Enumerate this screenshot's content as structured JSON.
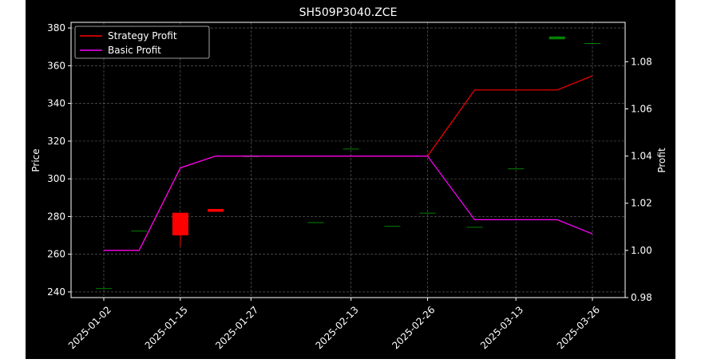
{
  "chart_data": {
    "type": "candlestick",
    "title": "SH509P3040.ZCE",
    "ylabel_left": "Price",
    "ylabel_right": "Profit",
    "x_ticks": [
      "2025-01-02",
      "2025-01-15",
      "2025-01-27",
      "2025-02-13",
      "2025-02-26",
      "2025-03-13",
      "2025-03-26"
    ],
    "y_left": {
      "ylim": [
        237,
        383
      ],
      "ticks": [
        240,
        260,
        280,
        300,
        320,
        340,
        360,
        380
      ]
    },
    "y_right": {
      "ylim": [
        0.98,
        1.0967
      ],
      "ticks": [
        0.98,
        1.0,
        1.02,
        1.04,
        1.06,
        1.08
      ]
    },
    "grid": true,
    "legend_position": "top-left",
    "colors": {
      "up": "#008000",
      "down": "#ff0000",
      "strategy": "#ff0000",
      "basic": "#ff00ff",
      "background": "#000000",
      "foreground": "#ffffff"
    },
    "candles": [
      {
        "date": "2025-01-02",
        "open": 242,
        "high": 242,
        "low": 242,
        "close": 242
      },
      {
        "date": "2025-01-08",
        "open": 272.5,
        "high": 272.5,
        "low": 272.5,
        "close": 272.5
      },
      {
        "date": "2025-01-15",
        "open": 282,
        "high": 282,
        "low": 264,
        "close": 270
      },
      {
        "date": "2025-01-21",
        "open": 284,
        "high": 284,
        "low": 282.5,
        "close": 282.5
      },
      {
        "date": "2025-01-27",
        "open": 312,
        "high": 312,
        "low": 312,
        "close": 312
      },
      {
        "date": "2025-02-07",
        "open": 277,
        "high": 277,
        "low": 277,
        "close": 277
      },
      {
        "date": "2025-02-13",
        "open": 316,
        "high": 316,
        "low": 316,
        "close": 316
      },
      {
        "date": "2025-02-20",
        "open": 275,
        "high": 275,
        "low": 275,
        "close": 275
      },
      {
        "date": "2025-02-26",
        "open": 282,
        "high": 282,
        "low": 282,
        "close": 282
      },
      {
        "date": "2025-03-06",
        "open": 274.5,
        "high": 274.5,
        "low": 274.5,
        "close": 274.5
      },
      {
        "date": "2025-03-13",
        "open": 305.5,
        "high": 305.5,
        "low": 305.5,
        "close": 305.5
      },
      {
        "date": "2025-03-20",
        "open": 374,
        "high": 375.5,
        "low": 374,
        "close": 375.5
      },
      {
        "date": "2025-03-26",
        "open": 372,
        "high": 372,
        "low": 372,
        "close": 372
      }
    ],
    "series": [
      {
        "name": "Strategy Profit",
        "axis": "right",
        "color": "#ff0000",
        "values": [
          1.0,
          1.0,
          1.035,
          1.04,
          1.04,
          1.04,
          1.04,
          1.04,
          1.04,
          1.068,
          1.068,
          1.068,
          1.074
        ]
      },
      {
        "name": "Basic Profit",
        "axis": "right",
        "color": "#ff00ff",
        "values": [
          1.0,
          1.0,
          1.035,
          1.04,
          1.04,
          1.04,
          1.04,
          1.04,
          1.04,
          1.013,
          1.013,
          1.013,
          1.007
        ]
      }
    ]
  }
}
